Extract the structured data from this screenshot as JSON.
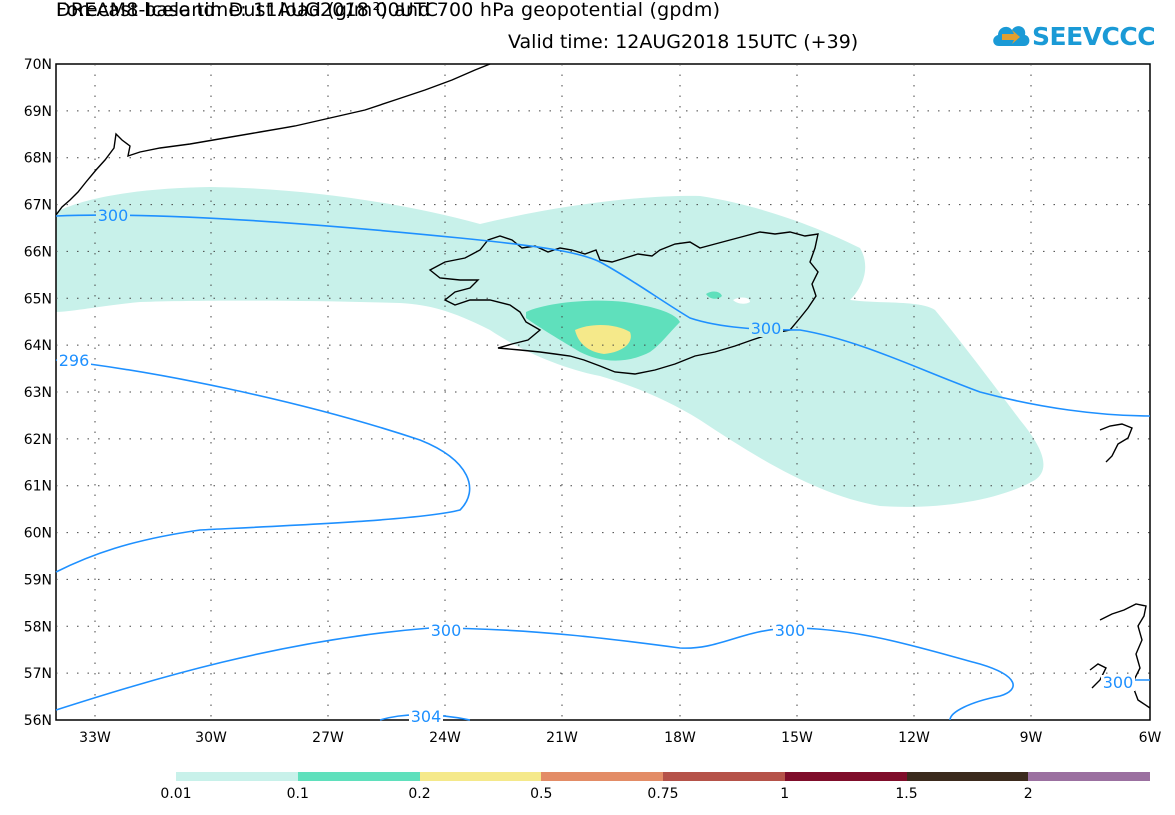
{
  "title": {
    "line1": "DREAM8-Iceland: Dust load (g/m²) and 700 hPa geopotential (gpdm)",
    "line2": "Forecast base time: 11AUG2018 00UTC",
    "valid": "Valid time: 12AUG2018 15UTC (+39)"
  },
  "logo": {
    "text": "SEEVCCC",
    "icon": "cloud-icon",
    "color": "#1a9ad6"
  },
  "axes": {
    "lat_labels": [
      "70N",
      "69N",
      "68N",
      "67N",
      "66N",
      "65N",
      "64N",
      "63N",
      "62N",
      "61N",
      "60N",
      "59N",
      "58N",
      "57N",
      "56N"
    ],
    "lon_labels": [
      "33W",
      "30W",
      "27W",
      "24W",
      "21W",
      "18W",
      "15W",
      "12W",
      "9W",
      "6W"
    ]
  },
  "contours": {
    "labels": [
      "300",
      "296",
      "300",
      "300",
      "300",
      "304",
      "300"
    ],
    "color": "#1e90ff"
  },
  "legend": {
    "thresholds": [
      "0.01",
      "0.1",
      "0.2",
      "0.5",
      "0.75",
      "1",
      "1.5",
      "2"
    ],
    "colors": [
      "#c8f1ea",
      "#5fe0bc",
      "#f5e98a",
      "#e38c66",
      "#b55249",
      "#7f0d2a",
      "#3b2a1d",
      "#9b70a0"
    ]
  }
}
